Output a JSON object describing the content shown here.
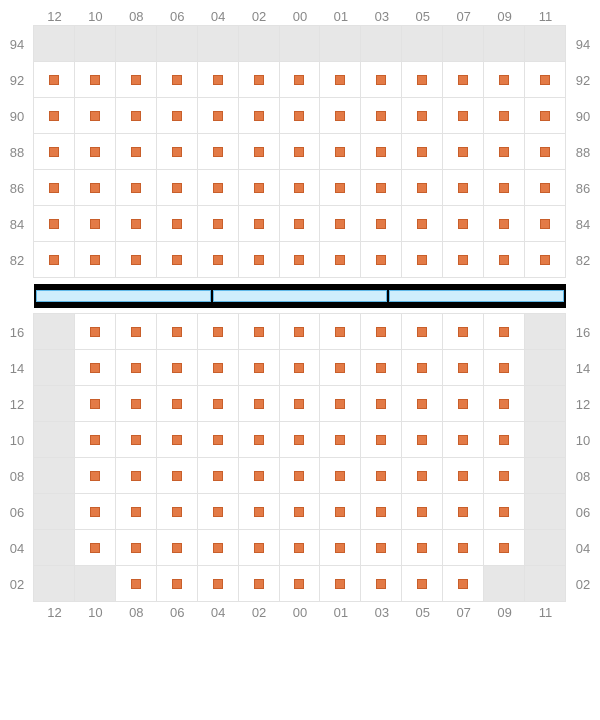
{
  "layout": {
    "columns": [
      "12",
      "10",
      "08",
      "06",
      "04",
      "02",
      "00",
      "01",
      "03",
      "05",
      "07",
      "09",
      "11"
    ],
    "seat_color": "#e37a46",
    "seat_border": "#c85f2b",
    "empty_bg": "#e7e7e7",
    "filled_bg": "#ffffff",
    "grid_border": "#e2e2e2",
    "label_color": "#888888",
    "divider_bg": "#000000",
    "divider_bar_bg": "#cfeefc",
    "divider_bar_border": "#5fb8e8"
  },
  "upper": {
    "rows": [
      "94",
      "92",
      "90",
      "88",
      "86",
      "84",
      "82"
    ],
    "cells": [
      [
        0,
        0,
        0,
        0,
        0,
        0,
        0,
        0,
        0,
        0,
        0,
        0,
        0
      ],
      [
        1,
        1,
        1,
        1,
        1,
        1,
        1,
        1,
        1,
        1,
        1,
        1,
        1
      ],
      [
        1,
        1,
        1,
        1,
        1,
        1,
        1,
        1,
        1,
        1,
        1,
        1,
        1
      ],
      [
        1,
        1,
        1,
        1,
        1,
        1,
        1,
        1,
        1,
        1,
        1,
        1,
        1
      ],
      [
        1,
        1,
        1,
        1,
        1,
        1,
        1,
        1,
        1,
        1,
        1,
        1,
        1
      ],
      [
        1,
        1,
        1,
        1,
        1,
        1,
        1,
        1,
        1,
        1,
        1,
        1,
        1
      ],
      [
        1,
        1,
        1,
        1,
        1,
        1,
        1,
        1,
        1,
        1,
        1,
        1,
        1
      ]
    ]
  },
  "divider": {
    "segments": 3
  },
  "lower": {
    "rows": [
      "16",
      "14",
      "12",
      "10",
      "08",
      "06",
      "04",
      "02"
    ],
    "cells": [
      [
        0,
        1,
        1,
        1,
        1,
        1,
        1,
        1,
        1,
        1,
        1,
        1,
        0
      ],
      [
        0,
        1,
        1,
        1,
        1,
        1,
        1,
        1,
        1,
        1,
        1,
        1,
        0
      ],
      [
        0,
        1,
        1,
        1,
        1,
        1,
        1,
        1,
        1,
        1,
        1,
        1,
        0
      ],
      [
        0,
        1,
        1,
        1,
        1,
        1,
        1,
        1,
        1,
        1,
        1,
        1,
        0
      ],
      [
        0,
        1,
        1,
        1,
        1,
        1,
        1,
        1,
        1,
        1,
        1,
        1,
        0
      ],
      [
        0,
        1,
        1,
        1,
        1,
        1,
        1,
        1,
        1,
        1,
        1,
        1,
        0
      ],
      [
        0,
        1,
        1,
        1,
        1,
        1,
        1,
        1,
        1,
        1,
        1,
        1,
        0
      ],
      [
        0,
        0,
        1,
        1,
        1,
        1,
        1,
        1,
        1,
        1,
        1,
        0,
        0
      ]
    ]
  }
}
